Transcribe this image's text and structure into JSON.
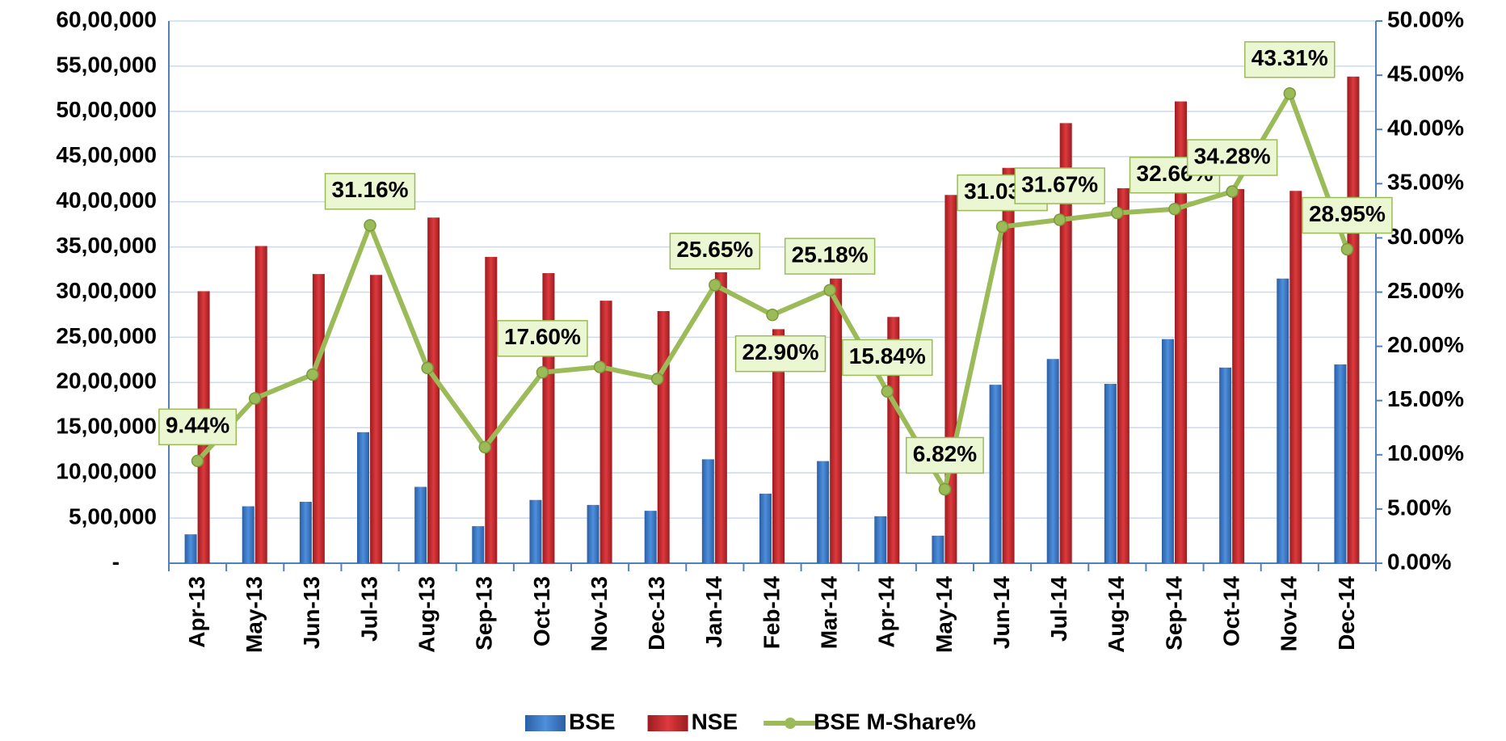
{
  "chart_data": {
    "type": "bar_line",
    "categories": [
      "Apr-13",
      "May-13",
      "Jun-13",
      "Jul-13",
      "Aug-13",
      "Sep-13",
      "Oct-13",
      "Nov-13",
      "Dec-13",
      "Jan-14",
      "Feb-14",
      "Mar-14",
      "Apr-14",
      "May-14",
      "Jun-14",
      "Jul-14",
      "Aug-14",
      "Sep-14",
      "Oct-14",
      "Nov-14",
      "Dec-14"
    ],
    "series": [
      {
        "name": "BSE",
        "type": "bar",
        "color": "#3c78c6",
        "values": [
          320000,
          630000,
          680000,
          1450000,
          845000,
          410000,
          700000,
          645000,
          580000,
          1150000,
          770000,
          1130000,
          520000,
          305000,
          1975000,
          2260000,
          1985000,
          2480000,
          2165000,
          3150000,
          2200000
        ]
      },
      {
        "name": "NSE",
        "type": "bar",
        "color": "#c3282d",
        "values": [
          3010000,
          3510000,
          3200000,
          3190000,
          3825000,
          3390000,
          3210000,
          2905000,
          2790000,
          3220000,
          2590000,
          3150000,
          2725000,
          4075000,
          4375000,
          4870000,
          4150000,
          5110000,
          4140000,
          4120000,
          5385000
        ]
      },
      {
        "name": "BSE M-Share%",
        "type": "line",
        "axis": "y2",
        "color": "#9bbb59",
        "values": [
          9.44,
          15.2,
          17.4,
          31.16,
          18.0,
          10.7,
          17.6,
          18.1,
          17.0,
          25.65,
          22.9,
          25.18,
          15.84,
          6.82,
          31.03,
          31.67,
          32.3,
          32.66,
          34.28,
          43.31,
          28.95
        ],
        "value_labels": [
          "9.44%",
          null,
          null,
          "31.16%",
          null,
          null,
          "17.60%",
          null,
          null,
          "25.65%",
          "22.90%",
          "25.18%",
          "15.84%",
          "6.82%",
          "31.03%",
          "31.67%",
          null,
          "32.66%",
          "34.28%",
          "43.31%",
          "28.95%"
        ]
      }
    ],
    "ylim": [
      0,
      6000000
    ],
    "yticks": [
      {
        "value": 0,
        "label": "-"
      },
      {
        "value": 500000,
        "label": "5,00,000"
      },
      {
        "value": 1000000,
        "label": "10,00,000"
      },
      {
        "value": 1500000,
        "label": "15,00,000"
      },
      {
        "value": 2000000,
        "label": "20,00,000"
      },
      {
        "value": 2500000,
        "label": "25,00,000"
      },
      {
        "value": 3000000,
        "label": "30,00,000"
      },
      {
        "value": 3500000,
        "label": "35,00,000"
      },
      {
        "value": 4000000,
        "label": "40,00,000"
      },
      {
        "value": 4500000,
        "label": "45,00,000"
      },
      {
        "value": 5000000,
        "label": "50,00,000"
      },
      {
        "value": 5500000,
        "label": "55,00,000"
      },
      {
        "value": 6000000,
        "label": "60,00,000"
      }
    ],
    "y2lim": [
      0,
      50
    ],
    "y2ticks": [
      {
        "value": 0,
        "label": "0.00%"
      },
      {
        "value": 5,
        "label": "5.00%"
      },
      {
        "value": 10,
        "label": "10.00%"
      },
      {
        "value": 15,
        "label": "15.00%"
      },
      {
        "value": 20,
        "label": "20.00%"
      },
      {
        "value": 25,
        "label": "25.00%"
      },
      {
        "value": 30,
        "label": "30.00%"
      },
      {
        "value": 35,
        "label": "35.00%"
      },
      {
        "value": 40,
        "label": "40.00%"
      },
      {
        "value": 45,
        "label": "45.00%"
      },
      {
        "value": 50,
        "label": "50.00%"
      }
    ],
    "grid": true,
    "legend": "bottom"
  }
}
